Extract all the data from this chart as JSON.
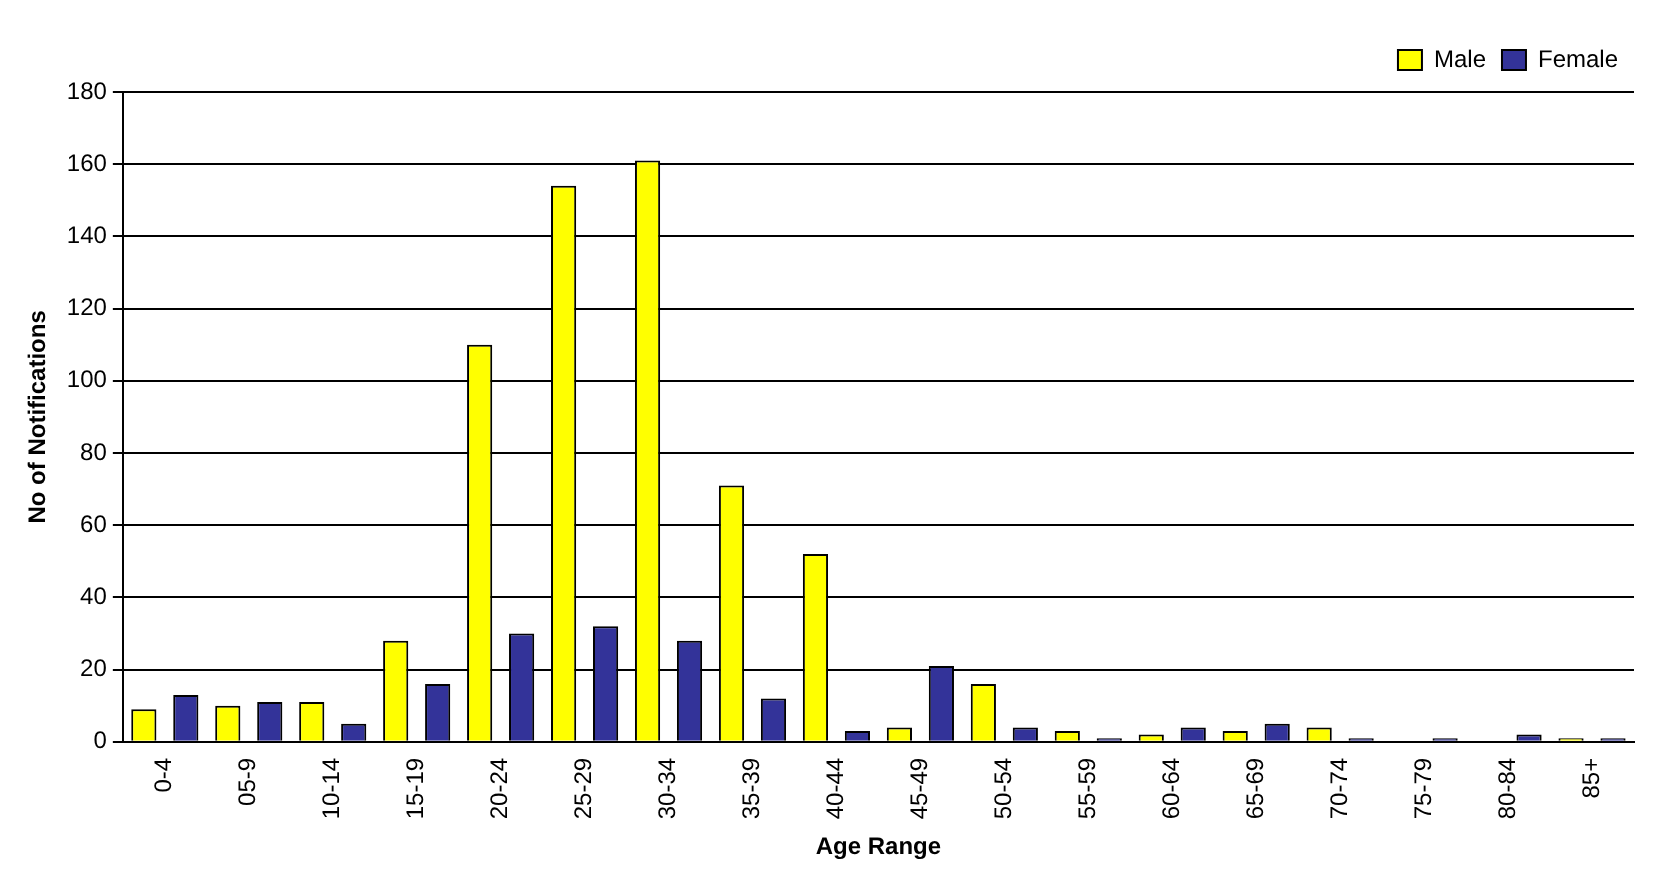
{
  "chart_data": {
    "type": "bar",
    "xlabel": "Age Range",
    "ylabel": "No of Notifications",
    "categories": [
      "0-4",
      "05-9",
      "10-14",
      "15-19",
      "20-24",
      "25-29",
      "30-34",
      "35-39",
      "40-44",
      "45-49",
      "50-54",
      "55-59",
      "60-64",
      "65-69",
      "70-74",
      "75-79",
      "80-84",
      "85+"
    ],
    "series": [
      {
        "name": "Male",
        "color": "#ffff00",
        "values": [
          9,
          10,
          11,
          28,
          110,
          154,
          161,
          71,
          52,
          4,
          16,
          3,
          2,
          3,
          4,
          0,
          0,
          1
        ]
      },
      {
        "name": "Female",
        "color": "#333399",
        "values": [
          13,
          11,
          5,
          16,
          30,
          32,
          28,
          12,
          3,
          21,
          4,
          1,
          4,
          5,
          1,
          1,
          2,
          1
        ]
      }
    ],
    "ylim": [
      0,
      180
    ],
    "yticks": [
      0,
      20,
      40,
      60,
      80,
      100,
      120,
      140,
      160,
      180
    ],
    "grid": "y",
    "legend": "top right"
  }
}
